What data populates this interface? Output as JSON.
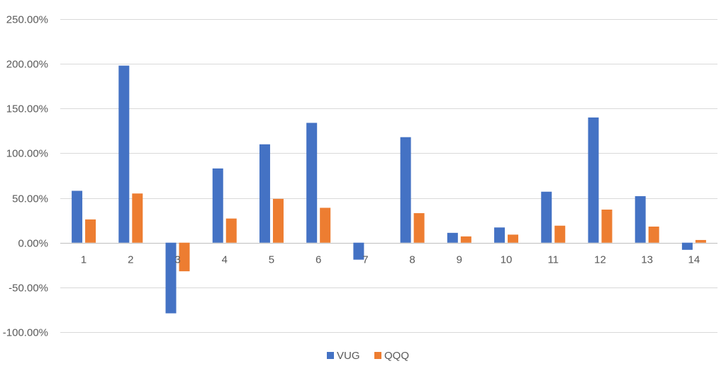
{
  "chart_data": {
    "type": "bar",
    "title": "",
    "xlabel": "",
    "ylabel": "",
    "categories": [
      "1",
      "2",
      "3",
      "4",
      "5",
      "6",
      "7",
      "8",
      "9",
      "10",
      "11",
      "12",
      "13",
      "14"
    ],
    "series": [
      {
        "name": "VUG",
        "color": "#4472C4",
        "values": [
          58,
          198,
          -79,
          83,
          110,
          134,
          -19,
          118,
          11,
          17,
          57,
          140,
          52,
          -8
        ]
      },
      {
        "name": "QQQ",
        "color": "#ED7D31",
        "values": [
          26,
          55,
          -32,
          27,
          49,
          39,
          0,
          33,
          7,
          9,
          19,
          37,
          18,
          3
        ]
      }
    ],
    "ylim": [
      -100,
      250
    ],
    "yticks": [
      -100,
      -50,
      0,
      50,
      100,
      150,
      200,
      250
    ],
    "ytick_labels": [
      "-100.00%",
      "-50.00%",
      "0.00%",
      "50.00%",
      "100.00%",
      "150.00%",
      "200.00%",
      "250.00%"
    ],
    "grid": true,
    "legend_position": "bottom"
  }
}
